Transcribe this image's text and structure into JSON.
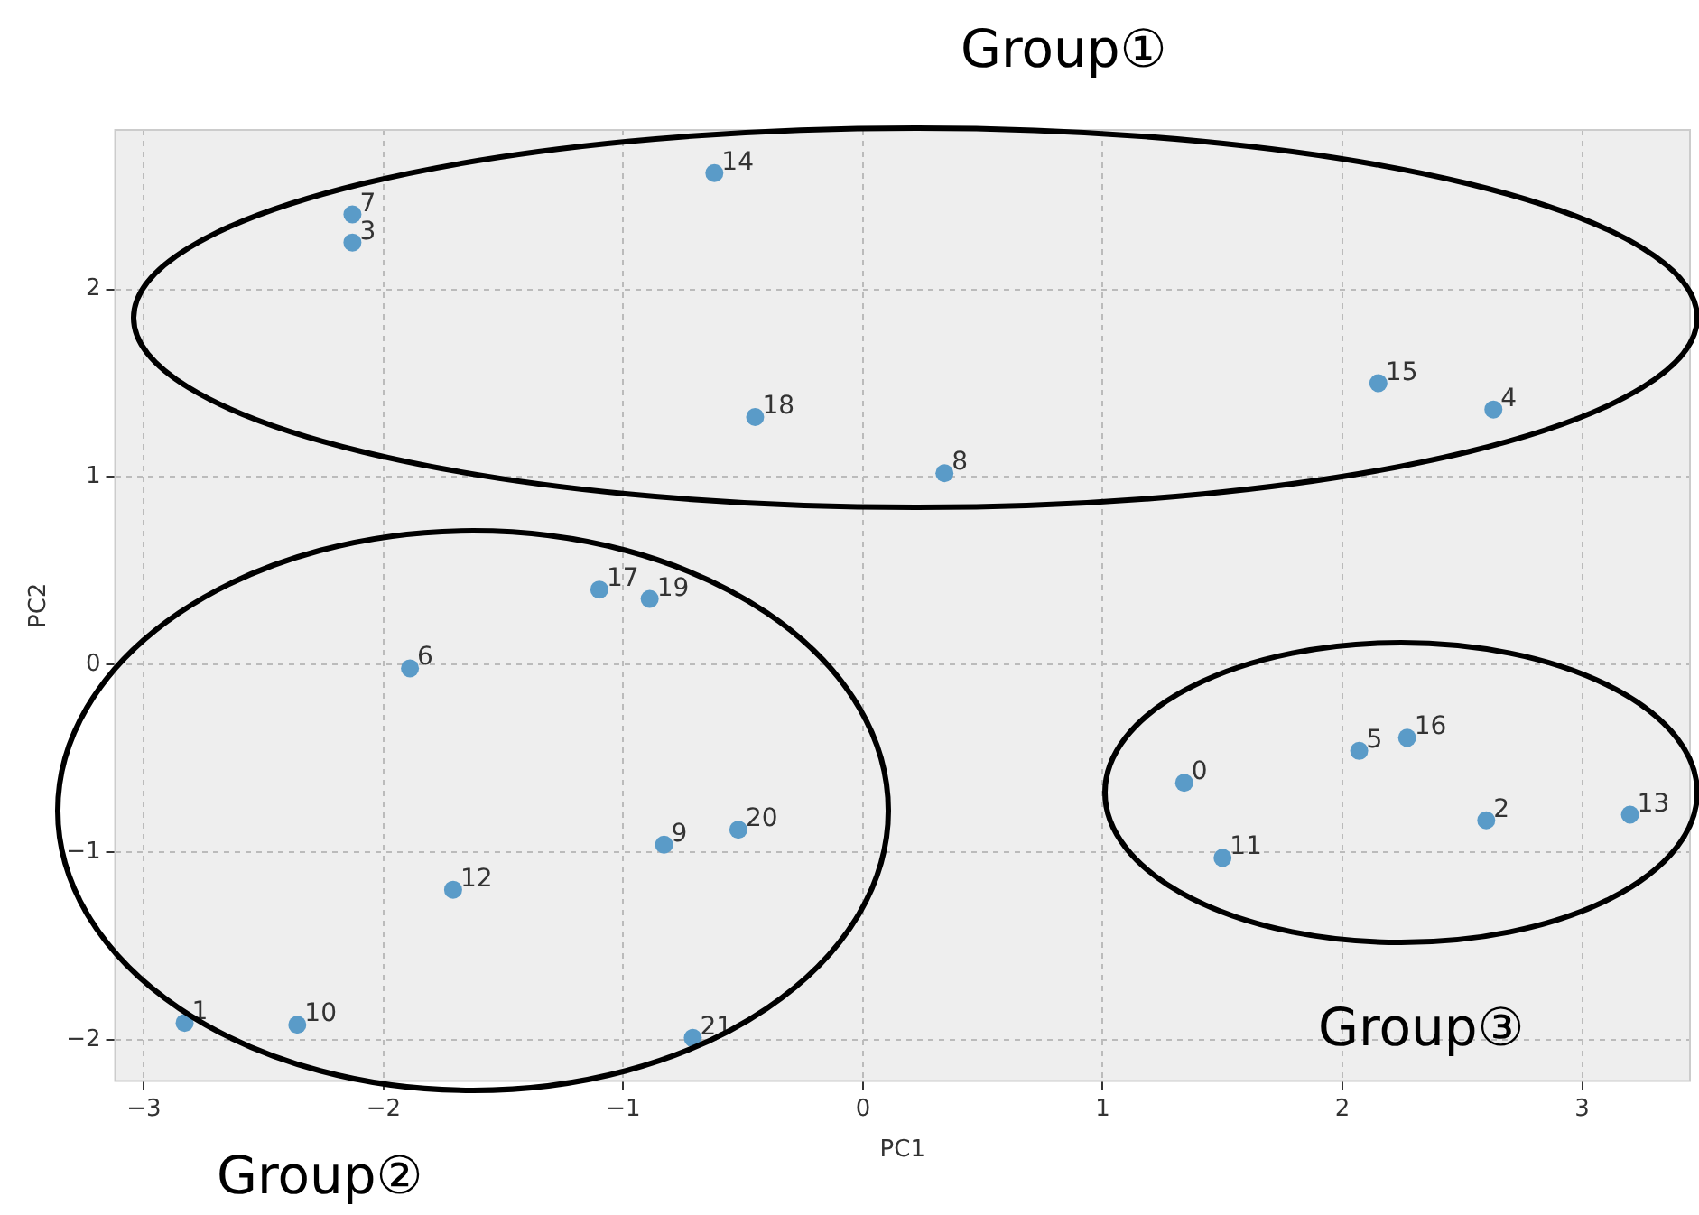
{
  "chart_data": {
    "type": "scatter",
    "xlabel": "PC1",
    "ylabel": "PC2",
    "x": [
      1.34,
      -2.83,
      2.6,
      -2.13,
      2.63,
      2.07,
      -1.89,
      -2.13,
      0.34,
      -0.83,
      -2.36,
      1.5,
      -1.71,
      3.2,
      -0.62,
      2.15,
      2.27,
      -1.1,
      -0.45,
      -0.89,
      -0.52,
      -0.71
    ],
    "series": [
      {
        "color": "#5a9bc8",
        "values": [
          -0.63,
          -1.91,
          -0.83,
          2.25,
          1.36,
          -0.46,
          -0.02,
          2.4,
          1.02,
          -0.96,
          -1.92,
          -1.03,
          -1.2,
          -0.8,
          2.62,
          1.5,
          -0.39,
          0.4,
          1.32,
          0.35,
          -0.88,
          -1.99
        ]
      }
    ],
    "marker": "circle",
    "grid": true,
    "legend": false,
    "xlim": [
      -3.12,
      3.45
    ],
    "ylim": [
      -2.22,
      2.85
    ],
    "xticks": [
      {
        "value": -3,
        "label": "−3"
      },
      {
        "value": -2,
        "label": "−2"
      },
      {
        "value": -1,
        "label": "−1"
      },
      0,
      1,
      2,
      3
    ],
    "yticks": [
      {
        "value": -2,
        "label": "−2"
      },
      {
        "value": -1,
        "label": "−1"
      },
      0,
      1,
      2
    ],
    "annotations": [
      {
        "text": "0",
        "x": 1.34,
        "y": -0.63
      },
      {
        "text": "1",
        "x": -2.83,
        "y": -1.91
      },
      {
        "text": "2",
        "x": 2.6,
        "y": -0.83
      },
      {
        "text": "3",
        "x": -2.13,
        "y": 2.25
      },
      {
        "text": "4",
        "x": 2.63,
        "y": 1.36
      },
      {
        "text": "5",
        "x": 2.07,
        "y": -0.46
      },
      {
        "text": "6",
        "x": -1.89,
        "y": -0.02
      },
      {
        "text": "7",
        "x": -2.13,
        "y": 2.4
      },
      {
        "text": "8",
        "x": 0.34,
        "y": 1.02
      },
      {
        "text": "9",
        "x": -0.83,
        "y": -0.96
      },
      {
        "text": "10",
        "x": -2.36,
        "y": -1.92
      },
      {
        "text": "11",
        "x": 1.5,
        "y": -1.03
      },
      {
        "text": "12",
        "x": -1.71,
        "y": -1.2
      },
      {
        "text": "13",
        "x": 3.2,
        "y": -0.8
      },
      {
        "text": "14",
        "x": -0.62,
        "y": 2.62
      },
      {
        "text": "15",
        "x": 2.15,
        "y": 1.5
      },
      {
        "text": "16",
        "x": 2.27,
        "y": -0.39
      },
      {
        "text": "17",
        "x": -1.1,
        "y": 0.4
      },
      {
        "text": "18",
        "x": -0.45,
        "y": 1.32
      },
      {
        "text": "19",
        "x": -0.89,
        "y": 0.35
      },
      {
        "text": "20",
        "x": -0.52,
        "y": -0.88
      },
      {
        "text": "21",
        "x": -0.71,
        "y": -1.99
      },
      "Group①",
      "Group②",
      "Group③"
    ]
  }
}
